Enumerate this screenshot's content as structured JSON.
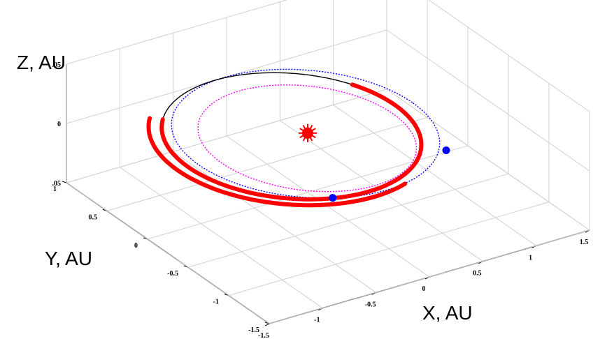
{
  "chart_data": {
    "type": "line",
    "title": "",
    "xlabel": "X, AU",
    "ylabel": "Y, AU",
    "zlabel": "Z, AU",
    "grid": true,
    "xlim": [
      -1.5,
      1.5
    ],
    "ylim": [
      -1.5,
      1
    ],
    "zlim": [
      -0.05,
      0.05
    ],
    "x_ticks": [
      "-1.5",
      "-1",
      "-0.5",
      "0",
      "0.5",
      "1",
      "1.5"
    ],
    "y_ticks": [
      "-1.5",
      "-1",
      "-0.5",
      "0",
      "0.5",
      "1"
    ],
    "z_ticks": [
      ".05",
      "0",
      ".05"
    ],
    "sun": {
      "x": 0,
      "y": 0,
      "z": 0,
      "color": "#ff0000"
    },
    "series": [
      {
        "style": "dotted",
        "color": "#0000ff",
        "orbit": {
          "a": 1.0,
          "e": 0.02,
          "inclination_deg": 0,
          "node_deg": 0,
          "peri_deg": 0
        }
      },
      {
        "style": "dotted",
        "color": "#ff00ff",
        "orbit": {
          "a": 0.82,
          "e": 0.1,
          "inclination_deg": 3,
          "node_deg": 50,
          "peri_deg": 0
        }
      },
      {
        "style": "solid",
        "color": "#000000",
        "orbit": {
          "a": 0.97,
          "e": 0.14,
          "inclination_deg": 1.4,
          "node_deg": -30,
          "peri_deg": 20
        }
      }
    ],
    "thick_arcs": [
      {
        "color": "#ff0000",
        "from_deg": 150,
        "to_deg": 400
      },
      {
        "color": "#ff0000",
        "from_deg": 150,
        "to_deg": 290
      }
    ],
    "markers": [
      {
        "color": "#0000ff",
        "x": -0.45,
        "y": -0.9,
        "z": 0
      },
      {
        "color": "#0000ff",
        "x": 0.75,
        "y": -0.72,
        "z": 0
      }
    ]
  }
}
